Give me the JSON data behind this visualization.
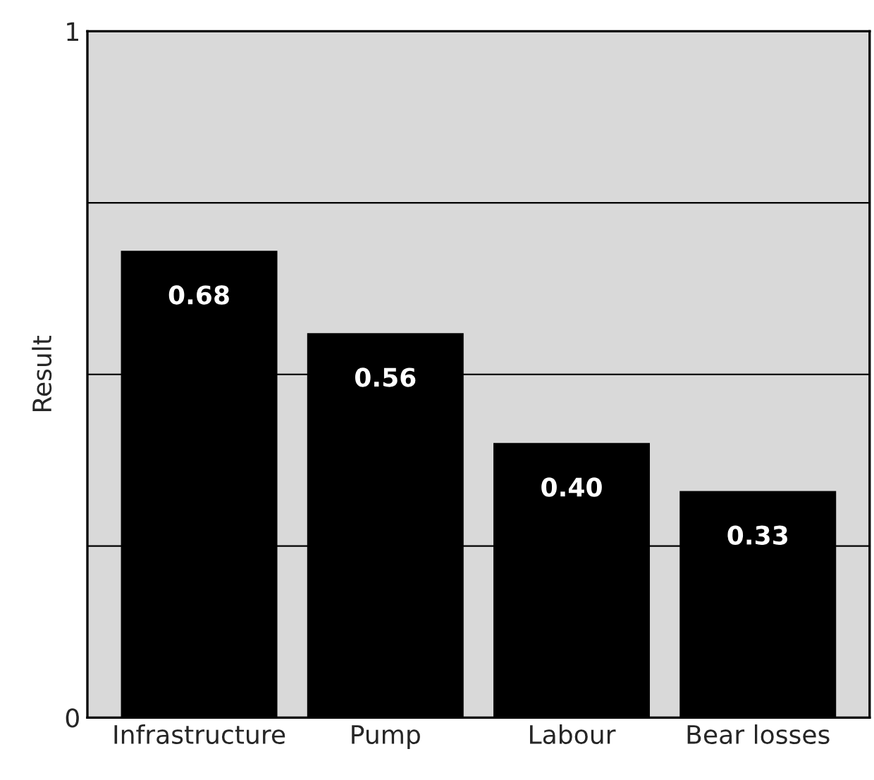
{
  "chart_data": {
    "type": "bar",
    "ylabel": "Result",
    "categories": [
      "Infrastructure",
      "Pump",
      "Labour",
      "Bear losses"
    ],
    "values": [
      0.68,
      0.56,
      0.4,
      0.33
    ],
    "color": "#000000",
    "ylim": [
      0,
      1
    ],
    "yticks": [
      0,
      {
        "value": 0.25,
        "label": null
      },
      {
        "value": 0.5,
        "label": null
      },
      {
        "value": 0.75,
        "label": null
      },
      1
    ],
    "value_labels": [
      "0.68",
      "0.56",
      "0.40",
      "0.33"
    ],
    "grid": "y",
    "legend": false
  }
}
